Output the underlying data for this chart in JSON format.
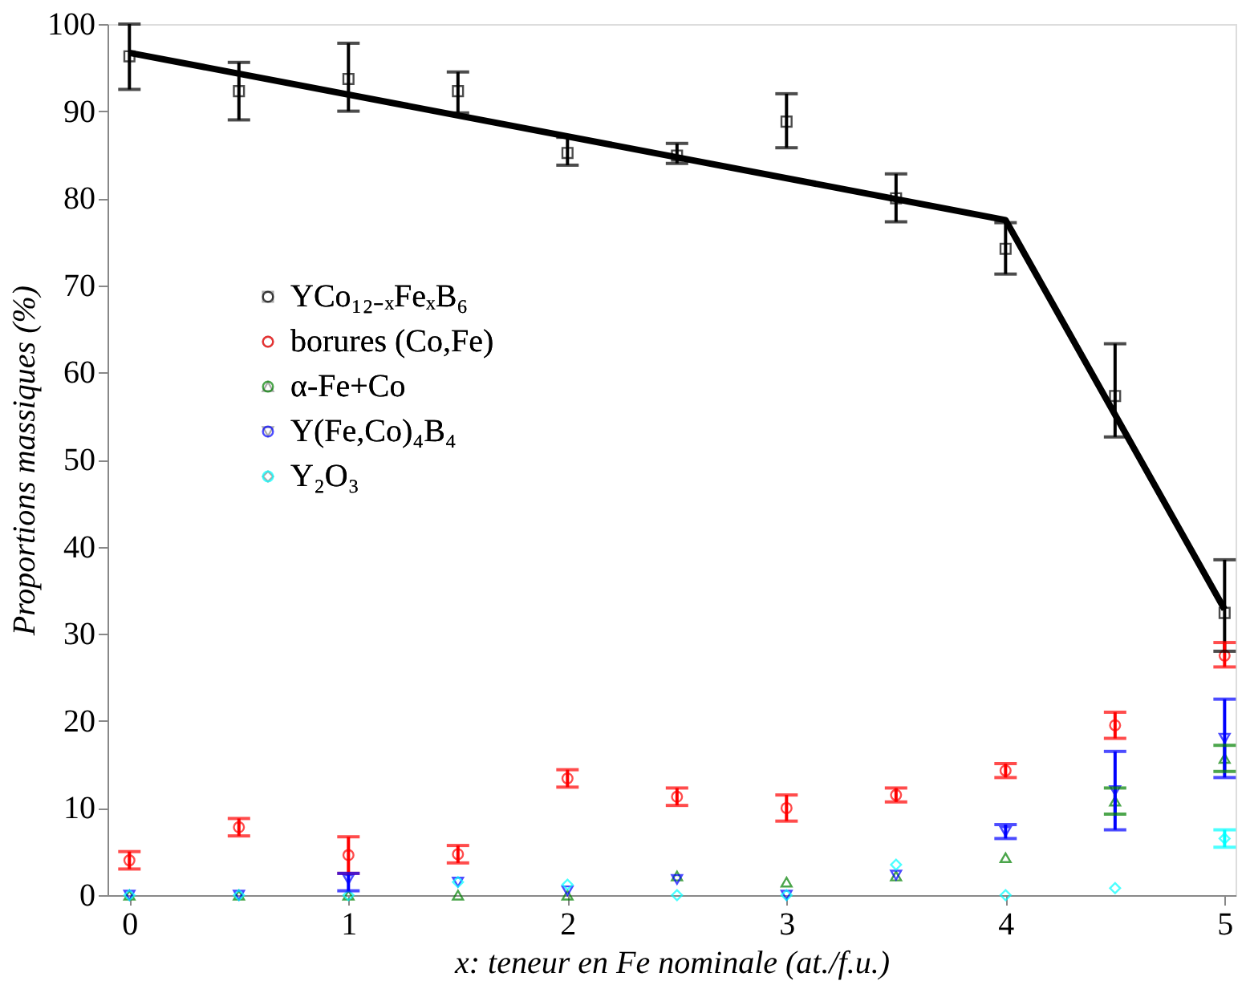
{
  "chart_data": {
    "type": "scatter",
    "xlabel": "x: teneur en Fe nominale (at./f.u.)",
    "ylabel": "Proportions massiques (%)",
    "xlim": [
      -0.1,
      5.05
    ],
    "xticks": [
      0,
      1,
      2,
      3,
      4,
      5
    ],
    "ylim": [
      0,
      100
    ],
    "yticks": [
      0,
      10,
      20,
      30,
      40,
      50,
      60,
      70,
      80,
      90,
      100
    ],
    "grid": false,
    "legend": "left",
    "x": [
      0,
      0.5,
      1,
      1.5,
      2,
      2.5,
      3,
      3.5,
      4,
      4.5,
      5
    ],
    "series": [
      {
        "name": "YCo₁₂₋ₓFeₓB₆",
        "color": "#000000",
        "marker": "square",
        "values": [
          96.3,
          92.3,
          93.7,
          92.3,
          85.2,
          84.9,
          88.8,
          80,
          74.2,
          57.3,
          32.4
        ],
        "errors": [
          [
            92.5,
            100
          ],
          [
            89,
            95.6
          ],
          [
            90,
            97.8
          ],
          [
            89.8,
            94.5
          ],
          [
            83.8,
            87
          ],
          [
            84,
            86.3
          ],
          [
            85.8,
            92
          ],
          [
            77.3,
            82.8
          ],
          [
            71.3,
            77.2
          ],
          [
            52.6,
            63.3
          ],
          [
            28,
            38.5
          ]
        ]
      },
      {
        "name": "borures (Co,Fe)",
        "color": "#ff0000",
        "marker": "circle",
        "values": [
          4,
          7.8,
          4.6,
          4.7,
          13.4,
          11.3,
          10,
          11.5,
          14.3,
          19.5,
          27.5
        ],
        "errors": [
          [
            3,
            5
          ],
          [
            6.8,
            8.8
          ],
          [
            2.5,
            6.7
          ],
          [
            3.7,
            5.7
          ],
          [
            12.4,
            14.4
          ],
          [
            10.3,
            12.3
          ],
          [
            8.5,
            11.5
          ],
          [
            10.7,
            12.3
          ],
          [
            13.5,
            15.1
          ],
          [
            18,
            21
          ],
          [
            26.2,
            29
          ]
        ]
      },
      {
        "name": "α-Fe+Co",
        "color": "#008000",
        "marker": "triangle",
        "values": [
          0,
          0,
          0,
          0,
          0,
          2.2,
          1.5,
          2.2,
          4.3,
          10.8,
          15.7
        ],
        "errors": [
          null,
          null,
          null,
          null,
          null,
          null,
          null,
          null,
          null,
          [
            9.3,
            12.3
          ],
          [
            14.2,
            17.2
          ]
        ]
      },
      {
        "name": "Y(Fe,Co)₄B₄",
        "color": "#0000ff",
        "marker": "triangle-down",
        "values": [
          0,
          0,
          1.8,
          1.5,
          0.5,
          1.8,
          0,
          2.3,
          7.3,
          12,
          18
        ],
        "errors": [
          null,
          null,
          [
            0.5,
            2.5
          ],
          null,
          null,
          null,
          null,
          null,
          [
            6.5,
            8.1
          ],
          [
            7.5,
            16.5
          ],
          [
            13.5,
            22.5
          ]
        ]
      },
      {
        "name": "Y₂O₃",
        "color": "#00ffff",
        "marker": "diamond",
        "values": [
          0,
          0,
          0,
          1.5,
          1.2,
          0,
          0,
          3.5,
          0,
          0.8,
          6.5
        ],
        "errors": [
          null,
          null,
          null,
          null,
          null,
          null,
          null,
          null,
          null,
          null,
          [
            5.5,
            7.5
          ]
        ]
      },
      {
        "type": "line",
        "color": "#000000",
        "x": [
          0,
          4,
          5
        ],
        "values": [
          96.7,
          77.5,
          32.8
        ]
      }
    ]
  }
}
